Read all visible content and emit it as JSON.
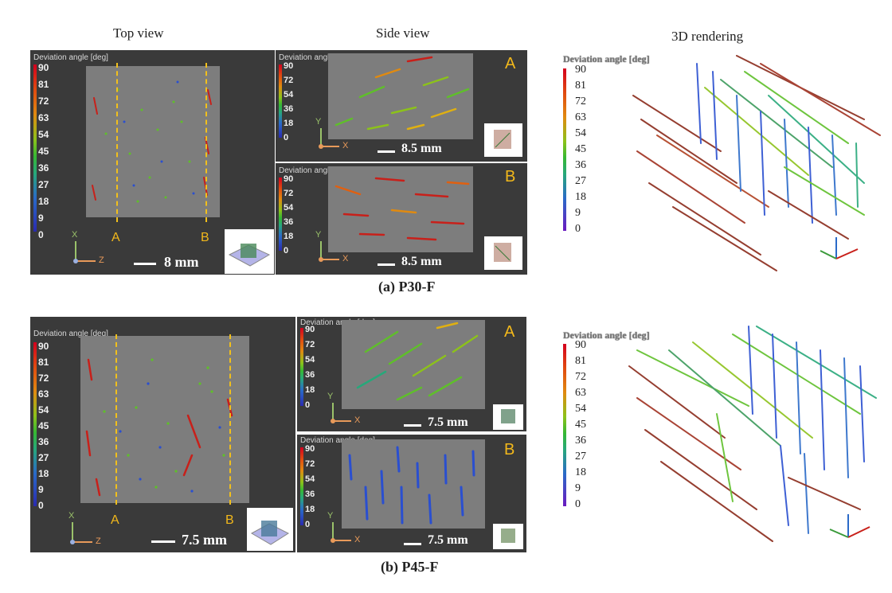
{
  "headers": {
    "top": "Top view",
    "side": "Side view",
    "render": "3D rendering"
  },
  "colorbar": {
    "title": "Deviation angle [deg]",
    "ticks_full": [
      "90",
      "81",
      "72",
      "63",
      "54",
      "45",
      "36",
      "27",
      "18",
      "9",
      "0"
    ],
    "ticks_short": [
      "90",
      "72",
      "54",
      "36",
      "18",
      "0"
    ]
  },
  "colors": {
    "marker": "#f2b81b",
    "red": "#c8201a",
    "green": "#5fbf2a",
    "blue": "#2a4fd0",
    "panel": "#3a3a3a"
  },
  "axes": {
    "x": "X",
    "y": "Y",
    "z": "Z"
  },
  "sections": {
    "a": "A",
    "b": "B"
  },
  "groups": [
    {
      "caption": "(a) P30-F",
      "top_scale": "8 mm",
      "sideA_scale": "8.5 mm",
      "sideB_scale": "8.5 mm"
    },
    {
      "caption": "(b) P45-F",
      "top_scale": "7.5 mm",
      "sideA_scale": "7.5 mm",
      "sideB_scale": "7.5 mm"
    }
  ]
}
